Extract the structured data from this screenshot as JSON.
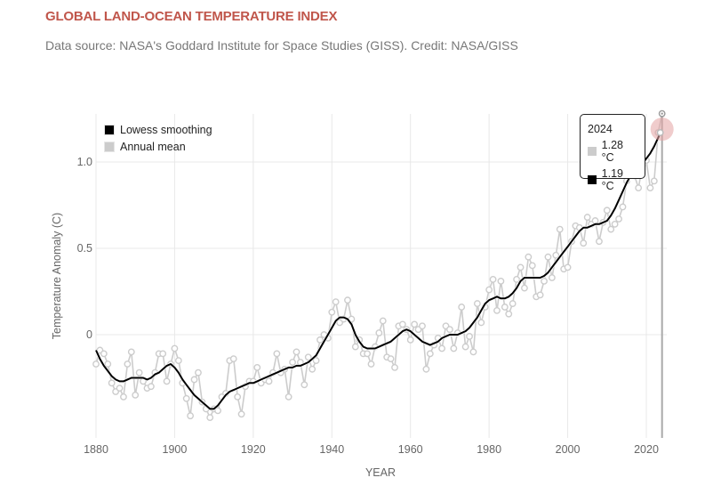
{
  "header": {
    "title": "GLOBAL LAND-OCEAN TEMPERATURE INDEX",
    "subtitle": "Data source: NASA's Goddard Institute for Space Studies (GISS). Credit: NASA/GISS"
  },
  "legend": {
    "items": [
      {
        "label": "Lowess smoothing",
        "color": "#000000"
      },
      {
        "label": "Annual mean",
        "color": "#cccccc"
      }
    ]
  },
  "tooltip": {
    "year": "2024",
    "annual_value": "1.28 °C",
    "smoothed_value": "1.19 °C",
    "annual_color": "#cccccc",
    "smoothed_color": "#000000"
  },
  "colors": {
    "annual_line": "#cccccc",
    "smooth_line": "#000000",
    "grid": "#e8e8e8",
    "highlight": "#e3a3a3",
    "hover_line": "#aaaaaa",
    "title": "#c0564b"
  },
  "chart_data": {
    "type": "line",
    "title": "GLOBAL LAND-OCEAN TEMPERATURE INDEX",
    "xlabel": "YEAR",
    "ylabel": "Temperature Anomaly (C)",
    "xlim": [
      1880,
      2024
    ],
    "ylim": [
      -0.6,
      1.28
    ],
    "x_ticks": [
      1880,
      1900,
      1920,
      1940,
      1960,
      1980,
      2000,
      2020
    ],
    "y_ticks": [
      0,
      0.5,
      1.0
    ],
    "y_tick_labels": [
      "0",
      "0.5",
      "1.0"
    ],
    "grid": true,
    "legend_position": "top-left",
    "highlight_year": 2024,
    "x": [
      1880,
      1881,
      1882,
      1883,
      1884,
      1885,
      1886,
      1887,
      1888,
      1889,
      1890,
      1891,
      1892,
      1893,
      1894,
      1895,
      1896,
      1897,
      1898,
      1899,
      1900,
      1901,
      1902,
      1903,
      1904,
      1905,
      1906,
      1907,
      1908,
      1909,
      1910,
      1911,
      1912,
      1913,
      1914,
      1915,
      1916,
      1917,
      1918,
      1919,
      1920,
      1921,
      1922,
      1923,
      1924,
      1925,
      1926,
      1927,
      1928,
      1929,
      1930,
      1931,
      1932,
      1933,
      1934,
      1935,
      1936,
      1937,
      1938,
      1939,
      1940,
      1941,
      1942,
      1943,
      1944,
      1945,
      1946,
      1947,
      1948,
      1949,
      1950,
      1951,
      1952,
      1953,
      1954,
      1955,
      1956,
      1957,
      1958,
      1959,
      1960,
      1961,
      1962,
      1963,
      1964,
      1965,
      1966,
      1967,
      1968,
      1969,
      1970,
      1971,
      1972,
      1973,
      1974,
      1975,
      1976,
      1977,
      1978,
      1979,
      1980,
      1981,
      1982,
      1983,
      1984,
      1985,
      1986,
      1987,
      1988,
      1989,
      1990,
      1991,
      1992,
      1993,
      1994,
      1995,
      1996,
      1997,
      1998,
      1999,
      2000,
      2001,
      2002,
      2003,
      2004,
      2005,
      2006,
      2007,
      2008,
      2009,
      2010,
      2011,
      2012,
      2013,
      2014,
      2015,
      2016,
      2017,
      2018,
      2019,
      2020,
      2021,
      2022,
      2023,
      2024
    ],
    "series": [
      {
        "name": "Annual mean",
        "values": [
          -0.17,
          -0.09,
          -0.11,
          -0.17,
          -0.28,
          -0.33,
          -0.31,
          -0.36,
          -0.17,
          -0.1,
          -0.35,
          -0.22,
          -0.27,
          -0.31,
          -0.3,
          -0.22,
          -0.11,
          -0.11,
          -0.27,
          -0.17,
          -0.08,
          -0.15,
          -0.28,
          -0.37,
          -0.47,
          -0.26,
          -0.22,
          -0.39,
          -0.43,
          -0.48,
          -0.43,
          -0.44,
          -0.36,
          -0.34,
          -0.15,
          -0.14,
          -0.36,
          -0.46,
          -0.3,
          -0.27,
          -0.27,
          -0.19,
          -0.28,
          -0.26,
          -0.27,
          -0.22,
          -0.11,
          -0.22,
          -0.2,
          -0.36,
          -0.16,
          -0.1,
          -0.16,
          -0.29,
          -0.13,
          -0.2,
          -0.15,
          -0.03,
          -0.0,
          -0.02,
          0.13,
          0.19,
          0.07,
          0.09,
          0.2,
          0.09,
          -0.07,
          -0.03,
          -0.11,
          -0.11,
          -0.17,
          -0.07,
          0.01,
          0.08,
          -0.13,
          -0.14,
          -0.19,
          0.05,
          0.06,
          0.03,
          -0.03,
          0.06,
          0.03,
          0.05,
          -0.2,
          -0.11,
          -0.06,
          -0.02,
          -0.08,
          0.05,
          0.03,
          -0.08,
          0.01,
          0.16,
          -0.07,
          -0.01,
          -0.1,
          0.18,
          0.07,
          0.16,
          0.26,
          0.32,
          0.14,
          0.31,
          0.16,
          0.12,
          0.18,
          0.32,
          0.39,
          0.27,
          0.45,
          0.4,
          0.22,
          0.23,
          0.31,
          0.45,
          0.33,
          0.46,
          0.61,
          0.38,
          0.39,
          0.54,
          0.63,
          0.62,
          0.53,
          0.68,
          0.64,
          0.66,
          0.54,
          0.65,
          0.72,
          0.61,
          0.64,
          0.67,
          0.74,
          0.89,
          1.01,
          0.92,
          0.85,
          0.98,
          1.01,
          0.85,
          0.89,
          1.17,
          1.28
        ]
      },
      {
        "name": "Lowess smoothing",
        "values": [
          -0.09,
          -0.14,
          -0.18,
          -0.21,
          -0.24,
          -0.26,
          -0.27,
          -0.27,
          -0.26,
          -0.25,
          -0.25,
          -0.25,
          -0.25,
          -0.26,
          -0.25,
          -0.23,
          -0.22,
          -0.2,
          -0.18,
          -0.17,
          -0.19,
          -0.22,
          -0.26,
          -0.29,
          -0.32,
          -0.35,
          -0.37,
          -0.39,
          -0.41,
          -0.43,
          -0.43,
          -0.41,
          -0.38,
          -0.35,
          -0.33,
          -0.32,
          -0.31,
          -0.3,
          -0.29,
          -0.28,
          -0.28,
          -0.27,
          -0.26,
          -0.25,
          -0.24,
          -0.23,
          -0.22,
          -0.21,
          -0.2,
          -0.19,
          -0.19,
          -0.18,
          -0.18,
          -0.17,
          -0.16,
          -0.14,
          -0.12,
          -0.08,
          -0.04,
          0.0,
          0.04,
          0.08,
          0.1,
          0.1,
          0.09,
          0.06,
          0.0,
          -0.04,
          -0.07,
          -0.08,
          -0.08,
          -0.08,
          -0.07,
          -0.06,
          -0.05,
          -0.04,
          -0.02,
          0.0,
          0.02,
          0.03,
          0.02,
          0.0,
          -0.02,
          -0.04,
          -0.05,
          -0.06,
          -0.05,
          -0.04,
          -0.02,
          -0.01,
          0.0,
          0.0,
          0.0,
          0.01,
          0.02,
          0.04,
          0.07,
          0.1,
          0.14,
          0.18,
          0.2,
          0.21,
          0.22,
          0.21,
          0.21,
          0.22,
          0.24,
          0.27,
          0.31,
          0.33,
          0.33,
          0.33,
          0.33,
          0.33,
          0.34,
          0.36,
          0.39,
          0.42,
          0.45,
          0.48,
          0.51,
          0.54,
          0.57,
          0.6,
          0.62,
          0.62,
          0.63,
          0.64,
          0.64,
          0.65,
          0.66,
          0.69,
          0.73,
          0.78,
          0.83,
          0.88,
          0.92,
          0.95,
          0.97,
          0.99,
          1.02,
          1.05,
          1.09,
          1.14,
          1.19
        ]
      }
    ]
  }
}
